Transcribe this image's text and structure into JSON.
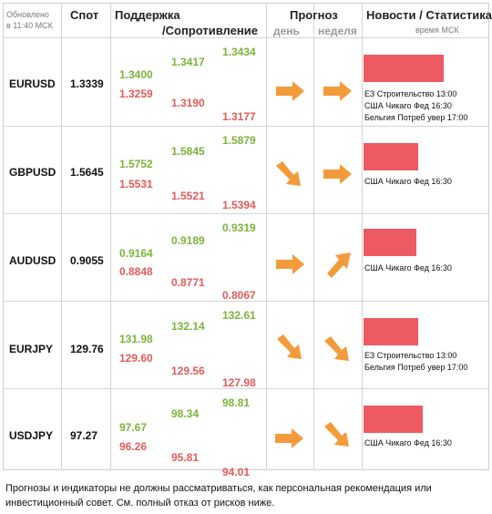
{
  "header": {
    "updated_line1": "Обновлено",
    "updated_line2": "в 11:40 МСК",
    "spot": "Спот",
    "support": "Поддержка",
    "resistance": "/Сопротивление",
    "forecast": "Прогноз",
    "day": "день",
    "week": "неделя",
    "news": "Новости / Статистика",
    "time_msk": "время МСК"
  },
  "rows": [
    {
      "pair": "EURUSD",
      "spot": "1.3339",
      "s1": "1.3400",
      "s2": "1.3259",
      "m1": "1.3417",
      "m2": "1.3190",
      "r1": "1.3434",
      "r2": "1.3177",
      "day": "right-arrow-icon",
      "week": "right-arrow-icon",
      "news": [
        "ЕЗ Строительство 13:00",
        "США Чикаго Фед 16:30",
        "Бельгия Потреб увер 17:00"
      ]
    },
    {
      "pair": "GBPUSD",
      "spot": "1.5645",
      "s1": "1.5752",
      "s2": "1.5531",
      "m1": "1.5845",
      "m2": "1.5521",
      "r1": "1.5879",
      "r2": "1.5394",
      "day": "down-right-arrow-icon",
      "week": "right-arrow-icon",
      "news": [
        "США Чикаго Фед 16:30"
      ]
    },
    {
      "pair": "AUDUSD",
      "spot": "0.9055",
      "s1": "0.9164",
      "s2": "0.8848",
      "m1": "0.9189",
      "m2": "0.8771",
      "r1": "0.9319",
      "r2": "0.8067",
      "day": "right-arrow-icon",
      "week": "up-right-arrow-icon",
      "news": [
        "США Чикаго Фед 16:30"
      ]
    },
    {
      "pair": "EURJPY",
      "spot": "129.76",
      "s1": "131.98",
      "s2": "129.60",
      "m1": "132.14",
      "m2": "129.56",
      "r1": "132.61",
      "r2": "127.98",
      "day": "down-right-arrow-icon",
      "week": "down-right-arrow-icon",
      "news": [
        "ЕЗ Строительство 13:00",
        "Бельгия Потреб увер 17:00"
      ]
    },
    {
      "pair": "USDJPY",
      "spot": "97.27",
      "s1": "97.67",
      "s2": "96.26",
      "m1": "98.34",
      "m2": "95.81",
      "r1": "98.81",
      "r2": "94.01",
      "day": "right-arrow-icon",
      "week": "down-right-arrow-icon",
      "news": [
        "США Чикаго Фед 16:30"
      ]
    }
  ],
  "colors": {
    "support": "#7cb33a",
    "resistance": "#e35a5a",
    "arrow": "#f39a3b",
    "bar": "#ee5a62"
  },
  "footer": "Прогнозы и индикаторы не должны рассматриваться, как персональная рекомендация или инвестиционный совет. См. полный отказ от рисков ниже."
}
